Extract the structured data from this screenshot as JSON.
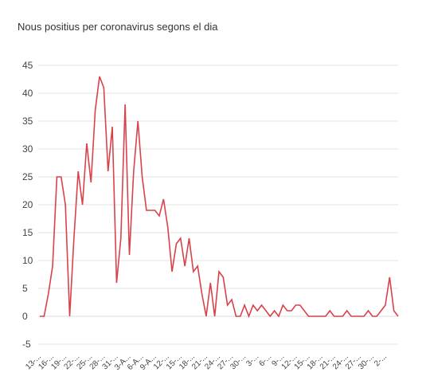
{
  "chart_data": {
    "type": "line",
    "title": "Nous positius per coronavirus segons el dia",
    "xlabel": "",
    "ylabel": "",
    "ylim": [
      -5,
      45
    ],
    "yticks": [
      -5,
      0,
      5,
      10,
      15,
      20,
      25,
      30,
      35,
      40,
      45
    ],
    "grid": true,
    "legend": "none",
    "x_tick_labels": [
      "13-...",
      "16-...",
      "19-...",
      "22-...",
      "25-...",
      "28-...",
      "31-...",
      "3-A...",
      "6-A...",
      "9-A...",
      "12-...",
      "15-...",
      "18-...",
      "21-...",
      "24-...",
      "27-...",
      "30-...",
      "3-...",
      "6-...",
      "9-...",
      "12-...",
      "15-...",
      "18-...",
      "21-...",
      "24-...",
      "27-...",
      "30-...",
      "2-..."
    ],
    "series": [
      {
        "color": "#d9424a",
        "values": [
          0,
          0,
          4,
          9,
          25,
          25,
          20,
          0,
          14,
          26,
          20,
          31,
          24,
          37,
          43,
          41,
          26,
          34,
          6,
          14,
          38,
          11,
          26,
          35,
          25,
          19,
          19,
          19,
          18,
          21,
          16,
          8,
          13,
          14,
          9,
          14,
          8,
          9,
          4,
          0,
          6,
          0,
          8,
          7,
          2,
          3,
          0,
          0,
          2,
          0,
          2,
          1,
          2,
          1,
          0,
          1,
          0,
          2,
          1,
          1,
          2,
          2,
          1,
          0,
          0,
          0,
          0,
          0,
          1,
          0,
          0,
          0,
          1,
          0,
          0,
          0,
          0,
          1,
          0,
          0,
          1,
          2,
          7,
          1,
          0
        ]
      }
    ],
    "colors": {
      "line": "#d9424a",
      "grid": "#e3e3e3",
      "text": "#444444"
    }
  }
}
